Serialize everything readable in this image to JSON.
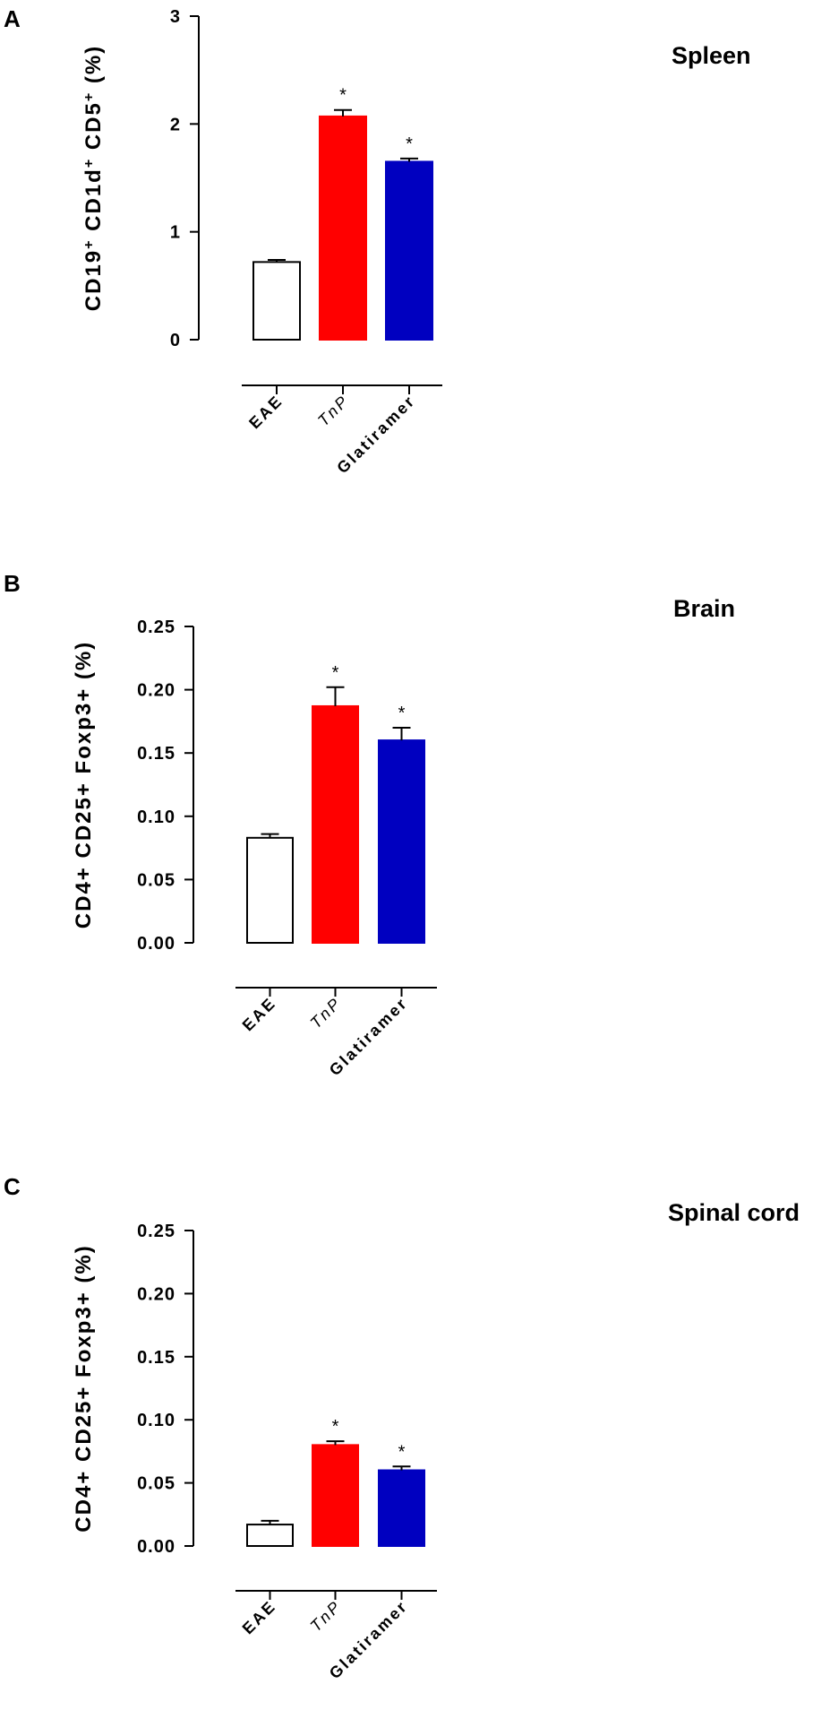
{
  "chart_data": [
    {
      "panel": "A",
      "title": "Spleen",
      "type": "bar",
      "ylabel_parts": [
        "CD19",
        "+",
        " CD1d",
        "+",
        " CD5",
        "+",
        " (%)"
      ],
      "ylim": [
        0,
        3
      ],
      "yticks": [
        "0",
        "1",
        "2",
        "3"
      ],
      "ytick_values": [
        0,
        1,
        2,
        3
      ],
      "categories": [
        "EAE",
        "TnP",
        "Glatiramer"
      ],
      "values": [
        0.72,
        2.07,
        1.65
      ],
      "errors": [
        0.02,
        0.06,
        0.03
      ],
      "significance": [
        "",
        "*",
        "*"
      ],
      "colors": [
        "#ffffff",
        "#ff0000",
        "#0000c0"
      ]
    },
    {
      "panel": "B",
      "title": "Brain",
      "type": "bar",
      "ylabel": "CD4+ CD25+ Foxp3+ (%)",
      "ylim": [
        0,
        0.25
      ],
      "yticks": [
        "0.00",
        "0.05",
        "0.10",
        "0.15",
        "0.20",
        "0.25"
      ],
      "ytick_values": [
        0,
        0.05,
        0.1,
        0.15,
        0.2,
        0.25
      ],
      "categories": [
        "EAE",
        "TnP",
        "Glatiramer"
      ],
      "values": [
        0.083,
        0.187,
        0.16
      ],
      "errors": [
        0.003,
        0.015,
        0.01
      ],
      "significance": [
        "",
        "*",
        "*"
      ],
      "colors": [
        "#ffffff",
        "#ff0000",
        "#0000c0"
      ]
    },
    {
      "panel": "C",
      "title": "Spinal cord",
      "type": "bar",
      "ylabel": "CD4+ CD25+ Foxp3+ (%)",
      "ylim": [
        0,
        0.25
      ],
      "yticks": [
        "0.00",
        "0.05",
        "0.10",
        "0.15",
        "0.20",
        "0.25"
      ],
      "ytick_values": [
        0,
        0.05,
        0.1,
        0.15,
        0.2,
        0.25
      ],
      "categories": [
        "EAE",
        "TnP",
        "Glatiramer"
      ],
      "values": [
        0.017,
        0.08,
        0.06
      ],
      "errors": [
        0.003,
        0.003,
        0.003
      ],
      "significance": [
        "",
        "*",
        "*"
      ],
      "colors": [
        "#ffffff",
        "#ff0000",
        "#0000c0"
      ]
    }
  ]
}
